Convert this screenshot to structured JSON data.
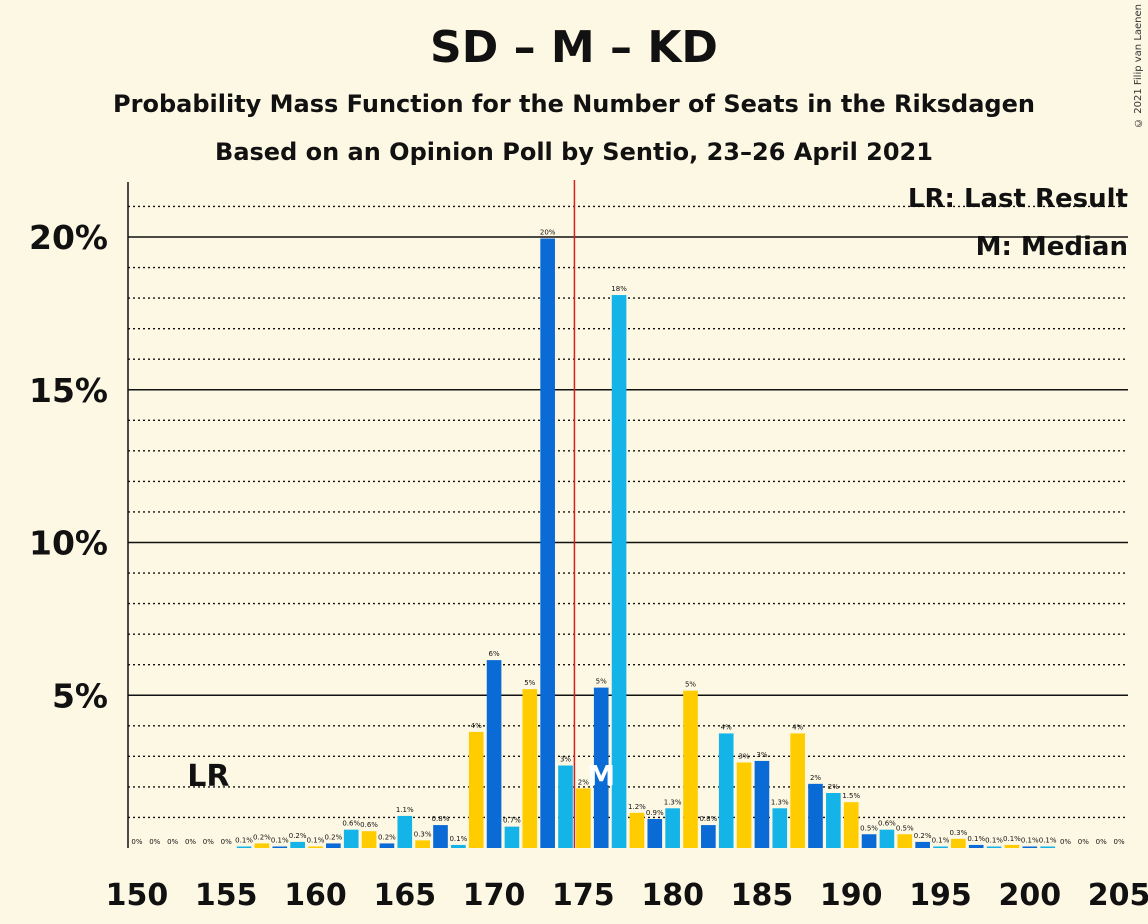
{
  "header": {
    "title": "SD – M – KD",
    "subtitle": "Probability Mass Function for the Number of Seats in the Riksdagen",
    "subtitle2": "Based on an Opinion Poll by Sentio, 23–26 April 2021",
    "copyright": "© 2021 Filip van Laenen"
  },
  "legend": {
    "last_result": "LR: Last Result",
    "median": "M: Median"
  },
  "colors": {
    "background": "#fdf8e3",
    "blue_dark": "#0a6ad6",
    "blue_light": "#15b4e8",
    "yellow": "#ffcc00",
    "majority_line": "#d62020"
  },
  "chart_data": {
    "type": "bar",
    "x": [
      150,
      151,
      152,
      153,
      154,
      155,
      156,
      157,
      158,
      159,
      160,
      161,
      162,
      163,
      164,
      165,
      166,
      167,
      168,
      169,
      170,
      171,
      172,
      173,
      174,
      175,
      176,
      177,
      178,
      179,
      180,
      181,
      182,
      183,
      184,
      185,
      186,
      187,
      188,
      189,
      190,
      191,
      192,
      193,
      194,
      195,
      196,
      197,
      198,
      199,
      200,
      201,
      202,
      203,
      204,
      205
    ],
    "values": [
      0,
      0,
      0,
      0,
      0,
      0,
      0.05,
      0.15,
      0.05,
      0.2,
      0.05,
      0.15,
      0.6,
      0.55,
      0.15,
      1.05,
      0.25,
      0.75,
      0.1,
      3.8,
      6.15,
      0.7,
      5.2,
      19.95,
      2.7,
      1.95,
      5.25,
      18.1,
      1.15,
      0.95,
      1.3,
      5.15,
      0.75,
      3.75,
      2.8,
      2.85,
      1.3,
      3.75,
      2.1,
      1.8,
      1.5,
      0.45,
      0.6,
      0.45,
      0.2,
      0.05,
      0.3,
      0.1,
      0.05,
      0.1,
      0.05,
      0.05,
      0,
      0,
      0,
      0
    ],
    "labels": [
      "0%",
      "0%",
      "0%",
      "0%",
      "0%",
      "0%",
      "0.1%",
      "0.2%",
      "0.1%",
      "0.2%",
      "0.1%",
      "0.2%",
      "0.6%",
      "0.6%",
      "0.2%",
      "1.1%",
      "0.3%",
      "0.8%",
      "0.1%",
      "4%",
      "6%",
      "0.7%",
      "5%",
      "20%",
      "3%",
      "2%",
      "5%",
      "18%",
      "1.2%",
      "0.9%",
      "1.3%",
      "5%",
      "0.8%",
      "4%",
      "3%",
      "3%",
      "1.3%",
      "4%",
      "2%",
      "2%",
      "1.5%",
      "0.5%",
      "0.6%",
      "0.5%",
      "0.2%",
      "0.1%",
      "0.3%",
      "0.1%",
      "0.1%",
      "0.1%",
      "0.1%",
      "0.1%",
      "0%",
      "0%",
      "0%",
      "0%"
    ],
    "xlim": [
      150,
      205
    ],
    "ylim": [
      0,
      21.8
    ],
    "xticks": [
      "150",
      "155",
      "160",
      "165",
      "170",
      "175",
      "180",
      "185",
      "190",
      "195",
      "200",
      "205"
    ],
    "yticks": [
      {
        "value": 5,
        "label": "5%"
      },
      {
        "value": 10,
        "label": "10%"
      },
      {
        "value": 15,
        "label": "15%"
      },
      {
        "value": 20,
        "label": "20%"
      }
    ],
    "majority_line": 174.5,
    "last_result": {
      "x": 154,
      "label": "LR"
    },
    "median": {
      "x": 176,
      "label": "M"
    },
    "grid": "solid at 5% steps, dotted at 1% steps"
  }
}
